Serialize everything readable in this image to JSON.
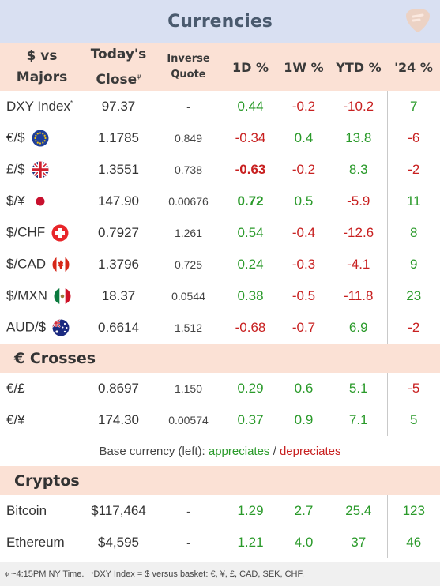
{
  "title": "Currencies",
  "header": {
    "col1": [
      "$ vs",
      "Majors"
    ],
    "col2": [
      "Today's",
      "Close"
    ],
    "col2_mark": "ψ",
    "col3": [
      "Inverse",
      "Quote"
    ],
    "col4": "1D %",
    "col5": "1W %",
    "col6": "YTD %",
    "col7": "'24 %"
  },
  "majors": [
    {
      "name": "DXY Index",
      "mark": "*",
      "flag": "",
      "close": "97.37",
      "inverse": "-",
      "d1": "0.44",
      "w1": "-0.2",
      "ytd": "-10.2",
      "y24": "7",
      "d1_bold": false
    },
    {
      "name": "€/$",
      "mark": "",
      "flag": "eu-flag-icon",
      "close": "1.1785",
      "inverse": "0.849",
      "d1": "-0.34",
      "w1": "0.4",
      "ytd": "13.8",
      "y24": "-6",
      "d1_bold": false
    },
    {
      "name": "£/$",
      "mark": "",
      "flag": "uk-flag-icon",
      "close": "1.3551",
      "inverse": "0.738",
      "d1": "-0.63",
      "w1": "-0.2",
      "ytd": "8.3",
      "y24": "-2",
      "d1_bold": true
    },
    {
      "name": "$/¥",
      "mark": "",
      "flag": "japan-flag-icon",
      "close": "147.90",
      "inverse": "0.00676",
      "d1": "0.72",
      "w1": "0.5",
      "ytd": "-5.9",
      "y24": "11",
      "d1_bold": true
    },
    {
      "name": "$/CHF",
      "mark": "",
      "flag": "swiss-flag-icon",
      "close": "0.7927",
      "inverse": "1.261",
      "d1": "0.54",
      "w1": "-0.4",
      "ytd": "-12.6",
      "y24": "8",
      "d1_bold": false
    },
    {
      "name": "$/CAD",
      "mark": "",
      "flag": "canada-flag-icon",
      "close": "1.3796",
      "inverse": "0.725",
      "d1": "0.24",
      "w1": "-0.3",
      "ytd": "-4.1",
      "y24": "9",
      "d1_bold": false
    },
    {
      "name": "$/MXN",
      "mark": "",
      "flag": "mexico-flag-icon",
      "close": "18.37",
      "inverse": "0.0544",
      "d1": "0.38",
      "w1": "-0.5",
      "ytd": "-11.8",
      "y24": "23",
      "d1_bold": false
    },
    {
      "name": "AUD/$",
      "mark": "",
      "flag": "australia-flag-icon",
      "close": "0.6614",
      "inverse": "1.512",
      "d1": "-0.68",
      "w1": "-0.7",
      "ytd": "6.9",
      "y24": "-2",
      "d1_bold": false
    }
  ],
  "crosses_title": "€ Crosses",
  "crosses": [
    {
      "name": "€/£",
      "close": "0.8697",
      "inverse": "1.150",
      "d1": "0.29",
      "w1": "0.6",
      "ytd": "5.1",
      "y24": "-5"
    },
    {
      "name": "€/¥",
      "close": "174.30",
      "inverse": "0.00574",
      "d1": "0.37",
      "w1": "0.9",
      "ytd": "7.1",
      "y24": "5"
    }
  ],
  "legend": {
    "prefix": "Base currency (left):",
    "up": "appreciates",
    "slash": "/",
    "down": "depreciates"
  },
  "cryptos_title": "Cryptos",
  "cryptos": [
    {
      "name": "Bitcoin",
      "close": "$117,464",
      "inverse": "-",
      "d1": "1.29",
      "w1": "2.7",
      "ytd": "25.4",
      "y24": "123"
    },
    {
      "name": "Ethereum",
      "close": "$4,595",
      "inverse": "-",
      "d1": "1.21",
      "w1": "4.0",
      "ytd": "37",
      "y24": "46"
    }
  ],
  "footer": {
    "mark1": "ψ",
    "text1": "~4:15PM NY Time.",
    "mark2": "*",
    "text2": "DXY Index = $ versus basket: €, ¥, £, CAD, SEK, CHF."
  },
  "colors": {
    "positive": "#2a9a2a",
    "negative": "#c82020",
    "header_bg": "#fbe1d5",
    "title_bg": "#d9e0f2"
  }
}
